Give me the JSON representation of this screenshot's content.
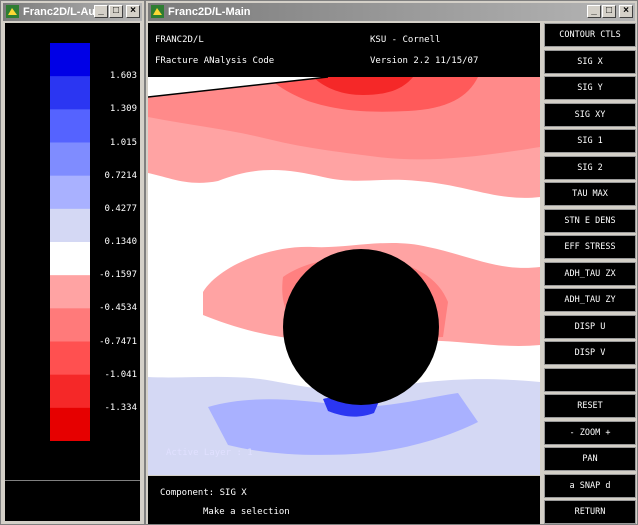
{
  "aux_window": {
    "title": "Franc2D/L-Aux",
    "legend": {
      "colors": [
        "#0000e6",
        "#2b36f2",
        "#5563ff",
        "#7f8cff",
        "#a9b1ff",
        "#d4d8f4",
        "#ffffff",
        "#ffa3a3",
        "#ff7a7a",
        "#ff5050",
        "#f52828",
        "#e60000"
      ],
      "labels": [
        "1.603",
        "1.309",
        "1.015",
        "0.7214",
        "0.4277",
        "0.1340",
        "-0.1597",
        "-0.4534",
        "-0.7471",
        "-1.041",
        "-1.334"
      ]
    }
  },
  "main_window": {
    "title": "Franc2D/L-Main",
    "header": {
      "program": "FRANC2D/L",
      "affiliation": "KSU - Cornell",
      "description": "FRacture ANalysis Code",
      "version": "Version  2.2 11/15/07"
    },
    "canvas": {
      "active_layer_label": "Active Layer :  1"
    },
    "status": {
      "component": "Component: SIG X",
      "prompt": "Make a selection"
    },
    "menu": [
      "CONTOUR CTLS",
      "SIG X",
      "SIG Y",
      "SIG XY",
      "SIG 1",
      "SIG 2",
      "TAU MAX",
      "STN E DENS",
      "EFF STRESS",
      "ADH_TAU ZX",
      "ADH_TAU ZY",
      "DISP U",
      "DISP V",
      "",
      "RESET",
      "- ZOOM +",
      "PAN",
      "a SNAP d",
      "RETURN"
    ]
  }
}
